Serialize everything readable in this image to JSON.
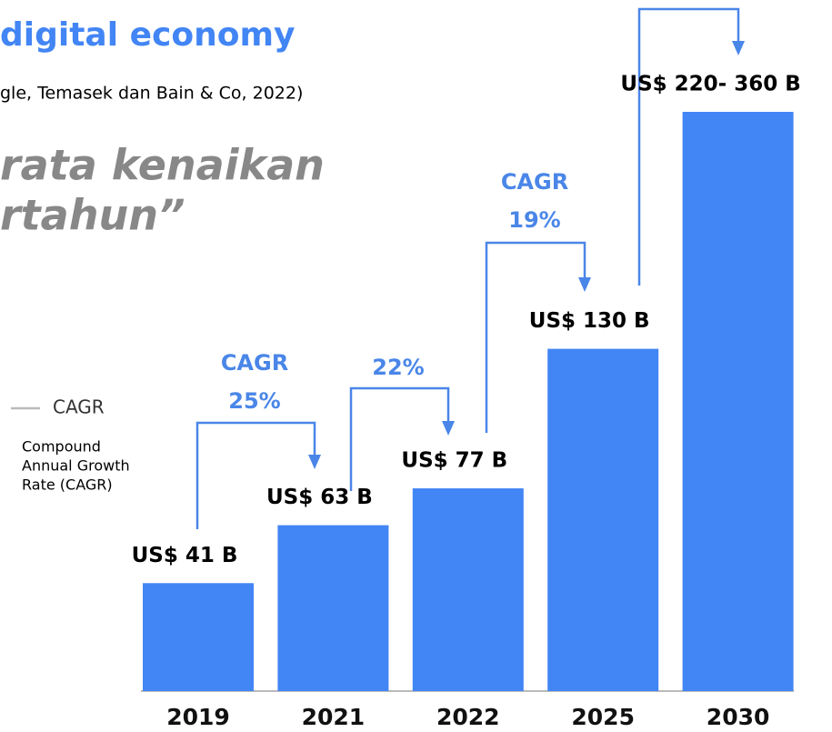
{
  "header": {
    "title": "digital economy",
    "source": "gle, Temasek dan Bain & Co, 2022)",
    "quote": [
      "rata kenaikan",
      "rtahun”"
    ]
  },
  "legend": {
    "name": "CAGR",
    "description": [
      "Compound",
      "Annual Growth",
      "Rate (CAGR)"
    ]
  },
  "chart_data": {
    "type": "bar",
    "color": "#4285f4",
    "categories": [
      "2019",
      "2021",
      "2022",
      "2025",
      "2030"
    ],
    "values": [
      41,
      63,
      77,
      130,
      220
    ],
    "value_labels": [
      "US$ 41 B",
      "US$ 63 B",
      "US$ 77 B",
      "US$ 130 B",
      "US$ 220- 360 B"
    ],
    "annotations": [
      {
        "lines": [
          "CAGR",
          "25%"
        ]
      },
      {
        "lines": [
          "22%"
        ]
      },
      {
        "lines": [
          "CAGR",
          "19%"
        ]
      }
    ]
  }
}
